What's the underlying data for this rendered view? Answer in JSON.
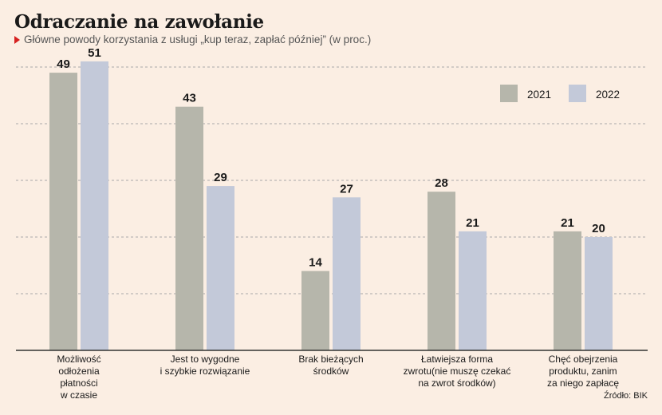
{
  "title": "Odraczanie na zawołanie",
  "subtitle": "Główne powody korzystania z usługi „kup teraz, zapłać później” (w proc.)",
  "source": "Źródło: BIK",
  "colors": {
    "2021": "#b6b6ab",
    "2022": "#c3c9d9",
    "background": "#fbeee3",
    "grid": "#a8a8a8",
    "axis": "#333333"
  },
  "chart_data": {
    "type": "bar",
    "title": "Odraczanie na zawołanie",
    "subtitle": "Główne powody korzystania z usługi „kup teraz, zapłać później” (w proc.)",
    "categories": [
      [
        "Możliwość",
        "odłożenia",
        "płatności",
        "w czasie"
      ],
      [
        "Jest to wygodne",
        "i szybkie rozwiązanie"
      ],
      [
        "Brak bieżących",
        "środków"
      ],
      [
        "Łatwiejsza forma",
        "zwrotu(nie muszę czekać",
        "na zwrot środków)"
      ],
      [
        "Chęć obejrzenia",
        "produktu, zanim",
        "za niego zapłacę"
      ]
    ],
    "series": [
      {
        "name": "2021",
        "values": [
          49,
          43,
          14,
          28,
          21
        ]
      },
      {
        "name": "2022",
        "values": [
          51,
          29,
          27,
          21,
          20
        ]
      }
    ],
    "ylim": [
      0,
      50
    ],
    "grid": true,
    "legend": "top-right",
    "xlabel": "",
    "ylabel": ""
  }
}
